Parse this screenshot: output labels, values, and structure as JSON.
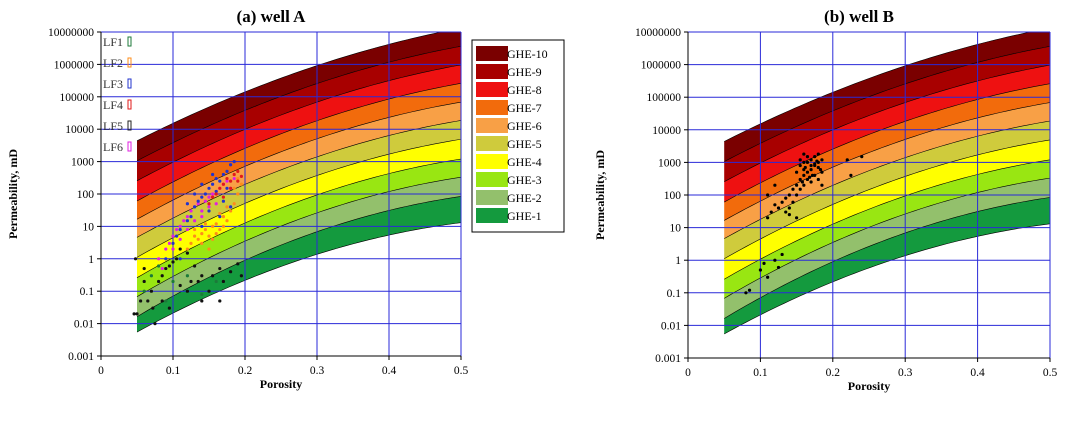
{
  "chart_data": [
    {
      "type": "scatter",
      "title": "(a) well A",
      "xlabel": "Porosity",
      "ylabel": "Permeability, mD",
      "xlim": [
        0,
        0.5
      ],
      "ylim": [
        0.001,
        10000000
      ],
      "yscale": "log",
      "grid": true,
      "x_ticks": [
        "0",
        "0.1",
        "0.2",
        "0.3",
        "0.4",
        "0.5"
      ],
      "y_ticks": [
        "0.001",
        "0.01",
        "0.1",
        "1",
        "10",
        "100",
        "1000",
        "10000",
        "100000",
        "1000000",
        "10000000"
      ],
      "legend_position": "top-right",
      "bands": [
        {
          "name": "GHE-10",
          "color": "#7a0000"
        },
        {
          "name": "GHE-9",
          "color": "#a80000"
        },
        {
          "name": "GHE-8",
          "color": "#ee1111"
        },
        {
          "name": "GHE-7",
          "color": "#f26b0c"
        },
        {
          "name": "GHE-6",
          "color": "#f8a046"
        },
        {
          "name": "GHE-5",
          "color": "#cfcb3c"
        },
        {
          "name": "GHE-4",
          "color": "#ffff00"
        },
        {
          "name": "GHE-3",
          "color": "#99e612"
        },
        {
          "name": "GHE-2",
          "color": "#93c06c"
        },
        {
          "name": "GHE-1",
          "color": "#149a3e"
        }
      ],
      "facies": [
        {
          "name": "LF1",
          "color": "#1c7a3a"
        },
        {
          "name": "LF2",
          "color": "#ff8c1a"
        },
        {
          "name": "LF3",
          "color": "#2233cc"
        },
        {
          "name": "LF4",
          "color": "#e21a1a"
        },
        {
          "name": "LF5",
          "color": "#222222"
        },
        {
          "name": "LF6",
          "color": "#e020e0"
        }
      ],
      "series": [
        {
          "facies": "LF5",
          "color": "#111111",
          "points": [
            [
              0.046,
              0.02
            ],
            [
              0.05,
              0.02
            ],
            [
              0.055,
              0.05
            ],
            [
              0.048,
              1
            ],
            [
              0.06,
              0.2
            ],
            [
              0.065,
              0.05
            ],
            [
              0.07,
              0.1
            ],
            [
              0.072,
              0.03
            ],
            [
              0.075,
              0.01
            ],
            [
              0.08,
              0.2
            ],
            [
              0.085,
              0.3
            ],
            [
              0.09,
              0.5
            ],
            [
              0.095,
              0.6
            ],
            [
              0.1,
              0.8
            ],
            [
              0.105,
              1
            ],
            [
              0.11,
              2
            ],
            [
              0.12,
              0.1
            ],
            [
              0.125,
              0.2
            ],
            [
              0.13,
              0.6
            ],
            [
              0.135,
              0.2
            ],
            [
              0.14,
              0.3
            ],
            [
              0.15,
              0.1
            ],
            [
              0.155,
              0.3
            ],
            [
              0.165,
              0.05
            ],
            [
              0.17,
              0.2
            ],
            [
              0.18,
              0.4
            ],
            [
              0.19,
              0.7
            ],
            [
              0.195,
              0.3
            ],
            [
              0.085,
              0.05
            ],
            [
              0.095,
              0.03
            ],
            [
              0.06,
              0.5
            ],
            [
              0.11,
              0.15
            ],
            [
              0.12,
              1.5
            ],
            [
              0.14,
              0.05
            ],
            [
              0.165,
              0.5
            ]
          ]
        },
        {
          "facies": "LF6",
          "color": "#e020e0",
          "points": [
            [
              0.08,
              1
            ],
            [
              0.09,
              2
            ],
            [
              0.095,
              3
            ],
            [
              0.1,
              5
            ],
            [
              0.105,
              8
            ],
            [
              0.11,
              10
            ],
            [
              0.115,
              15
            ],
            [
              0.12,
              20
            ],
            [
              0.125,
              30
            ],
            [
              0.13,
              40
            ],
            [
              0.135,
              50
            ],
            [
              0.14,
              30
            ],
            [
              0.145,
              60
            ],
            [
              0.15,
              80
            ],
            [
              0.155,
              100
            ],
            [
              0.16,
              120
            ],
            [
              0.165,
              150
            ],
            [
              0.17,
              200
            ],
            [
              0.175,
              250
            ],
            [
              0.18,
              150
            ],
            [
              0.185,
              300
            ],
            [
              0.12,
              8
            ],
            [
              0.13,
              15
            ],
            [
              0.14,
              20
            ],
            [
              0.15,
              40
            ],
            [
              0.16,
              50
            ],
            [
              0.1,
              2
            ],
            [
              0.11,
              4
            ],
            [
              0.085,
              0.5
            ]
          ]
        },
        {
          "facies": "LF3",
          "color": "#2233cc",
          "points": [
            [
              0.1,
              3
            ],
            [
              0.105,
              5
            ],
            [
              0.11,
              8
            ],
            [
              0.12,
              15
            ],
            [
              0.125,
              20
            ],
            [
              0.13,
              40
            ],
            [
              0.135,
              60
            ],
            [
              0.14,
              80
            ],
            [
              0.145,
              100
            ],
            [
              0.15,
              150
            ],
            [
              0.155,
              200
            ],
            [
              0.16,
              300
            ],
            [
              0.165,
              250
            ],
            [
              0.17,
              400
            ],
            [
              0.175,
              500
            ],
            [
              0.18,
              800
            ],
            [
              0.185,
              1000
            ],
            [
              0.12,
              50
            ],
            [
              0.13,
              100
            ],
            [
              0.14,
              200
            ],
            [
              0.15,
              30
            ],
            [
              0.16,
              120
            ],
            [
              0.17,
              60
            ],
            [
              0.18,
              40
            ],
            [
              0.165,
              20
            ],
            [
              0.11,
              1
            ],
            [
              0.09,
              1
            ],
            [
              0.14,
              10
            ],
            [
              0.155,
              400
            ],
            [
              0.175,
              150
            ]
          ]
        },
        {
          "facies": "LF2",
          "color": "#ff8c1a",
          "points": [
            [
              0.12,
              2
            ],
            [
              0.125,
              3
            ],
            [
              0.13,
              5
            ],
            [
              0.135,
              4
            ],
            [
              0.14,
              6
            ],
            [
              0.145,
              8
            ],
            [
              0.15,
              5
            ],
            [
              0.155,
              10
            ],
            [
              0.16,
              12
            ],
            [
              0.165,
              8
            ],
            [
              0.17,
              20
            ],
            [
              0.175,
              15
            ],
            [
              0.18,
              30
            ],
            [
              0.185,
              50
            ],
            [
              0.19,
              100
            ],
            [
              0.195,
              200
            ],
            [
              0.14,
              3
            ],
            [
              0.15,
              2
            ],
            [
              0.155,
              4
            ],
            [
              0.16,
              6
            ],
            [
              0.13,
              8
            ],
            [
              0.145,
              12
            ],
            [
              0.175,
              40
            ],
            [
              0.185,
              150
            ],
            [
              0.19,
              300
            ],
            [
              0.165,
              25
            ],
            [
              0.17,
              10
            ]
          ]
        },
        {
          "facies": "LF4",
          "color": "#e21a1a",
          "points": [
            [
              0.15,
              50
            ],
            [
              0.155,
              80
            ],
            [
              0.16,
              100
            ],
            [
              0.165,
              150
            ],
            [
              0.17,
              200
            ],
            [
              0.175,
              300
            ],
            [
              0.18,
              250
            ],
            [
              0.185,
              400
            ],
            [
              0.19,
              500
            ],
            [
              0.195,
              350
            ],
            [
              0.17,
              80
            ],
            [
              0.18,
              150
            ],
            [
              0.19,
              250
            ]
          ]
        },
        {
          "facies": "LF1",
          "color": "#1c7a3a",
          "points": [
            [
              0.06,
              0.1
            ],
            [
              0.07,
              0.3
            ],
            [
              0.09,
              0.05
            ],
            [
              0.12,
              0.3
            ],
            [
              0.14,
              0.08
            ],
            [
              0.16,
              0.2
            ],
            [
              0.08,
              0.6
            ],
            [
              0.1,
              0.2
            ]
          ]
        }
      ]
    },
    {
      "type": "scatter",
      "title": "(b) well B",
      "xlabel": "Porosity",
      "ylabel": "Permeability, mD",
      "xlim": [
        0,
        0.5
      ],
      "ylim": [
        0.001,
        10000000
      ],
      "yscale": "log",
      "grid": true,
      "x_ticks": [
        "0",
        "0.1",
        "0.2",
        "0.3",
        "0.4",
        "0.5"
      ],
      "y_ticks": [
        "0.001",
        "0.01",
        "0.1",
        "1",
        "10",
        "100",
        "1000",
        "10000",
        "100000",
        "1000000",
        "10000000"
      ],
      "series": [
        {
          "color": "#000000",
          "points": [
            [
              0.08,
              0.1
            ],
            [
              0.085,
              0.12
            ],
            [
              0.1,
              0.5
            ],
            [
              0.105,
              0.8
            ],
            [
              0.11,
              0.3
            ],
            [
              0.12,
              1
            ],
            [
              0.125,
              0.6
            ],
            [
              0.13,
              1.5
            ],
            [
              0.11,
              20
            ],
            [
              0.115,
              30
            ],
            [
              0.12,
              50
            ],
            [
              0.125,
              40
            ],
            [
              0.13,
              60
            ],
            [
              0.135,
              80
            ],
            [
              0.14,
              100
            ],
            [
              0.145,
              150
            ],
            [
              0.15,
              200
            ],
            [
              0.155,
              300
            ],
            [
              0.16,
              400
            ],
            [
              0.165,
              500
            ],
            [
              0.17,
              600
            ],
            [
              0.175,
              800
            ],
            [
              0.18,
              1000
            ],
            [
              0.185,
              1200
            ],
            [
              0.15,
              500
            ],
            [
              0.155,
              800
            ],
            [
              0.16,
              1000
            ],
            [
              0.165,
              1500
            ],
            [
              0.17,
              1200
            ],
            [
              0.175,
              900
            ],
            [
              0.18,
              700
            ],
            [
              0.185,
              500
            ],
            [
              0.16,
              200
            ],
            [
              0.165,
              300
            ],
            [
              0.17,
              250
            ],
            [
              0.175,
              400
            ],
            [
              0.18,
              300
            ],
            [
              0.185,
              200
            ],
            [
              0.155,
              150
            ],
            [
              0.15,
              100
            ],
            [
              0.145,
              60
            ],
            [
              0.14,
              40
            ],
            [
              0.16,
              600
            ],
            [
              0.17,
              800
            ],
            [
              0.172,
              400
            ],
            [
              0.168,
              350
            ],
            [
              0.158,
              250
            ],
            [
              0.162,
              700
            ],
            [
              0.178,
              1100
            ],
            [
              0.183,
              600
            ],
            [
              0.22,
              1200
            ],
            [
              0.225,
              400
            ],
            [
              0.24,
              1500
            ],
            [
              0.12,
              200
            ],
            [
              0.135,
              30
            ],
            [
              0.14,
              25
            ],
            [
              0.15,
              20
            ],
            [
              0.11,
              100
            ],
            [
              0.165,
              1000
            ],
            [
              0.175,
              1500
            ],
            [
              0.18,
              1800
            ],
            [
              0.16,
              1800
            ],
            [
              0.155,
              1200
            ]
          ]
        }
      ]
    }
  ]
}
